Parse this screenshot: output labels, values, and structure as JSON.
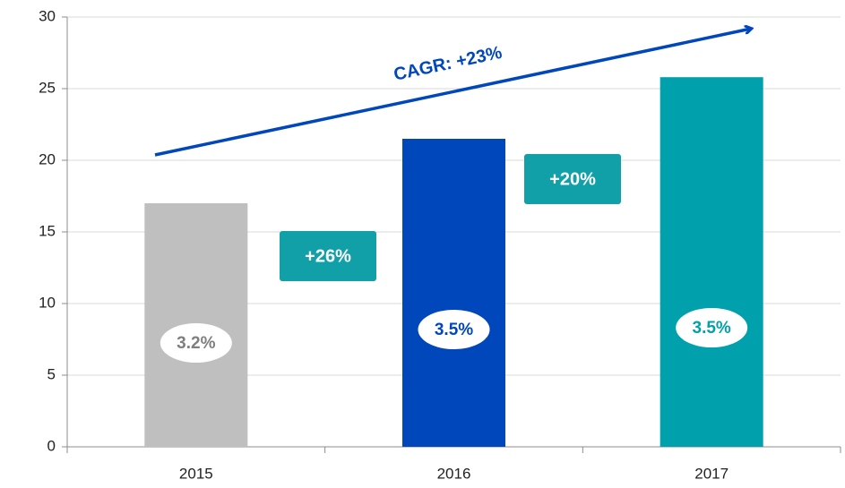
{
  "chart_data": {
    "type": "bar",
    "categories": [
      "2015",
      "2016",
      "2017"
    ],
    "values": [
      17,
      21.5,
      25.8
    ],
    "colors": [
      "#bfbfbf",
      "#0047bb",
      "#00a0ac"
    ],
    "ylim": [
      0,
      30
    ],
    "yticks": [
      0,
      5,
      10,
      15,
      20,
      25,
      30
    ],
    "grid": true,
    "bar_notes": [
      "3.2%",
      "3.5%",
      "3.5%"
    ],
    "growth_labels": [
      "+26%",
      "+20%"
    ],
    "trend_label": "CAGR: +23%"
  }
}
